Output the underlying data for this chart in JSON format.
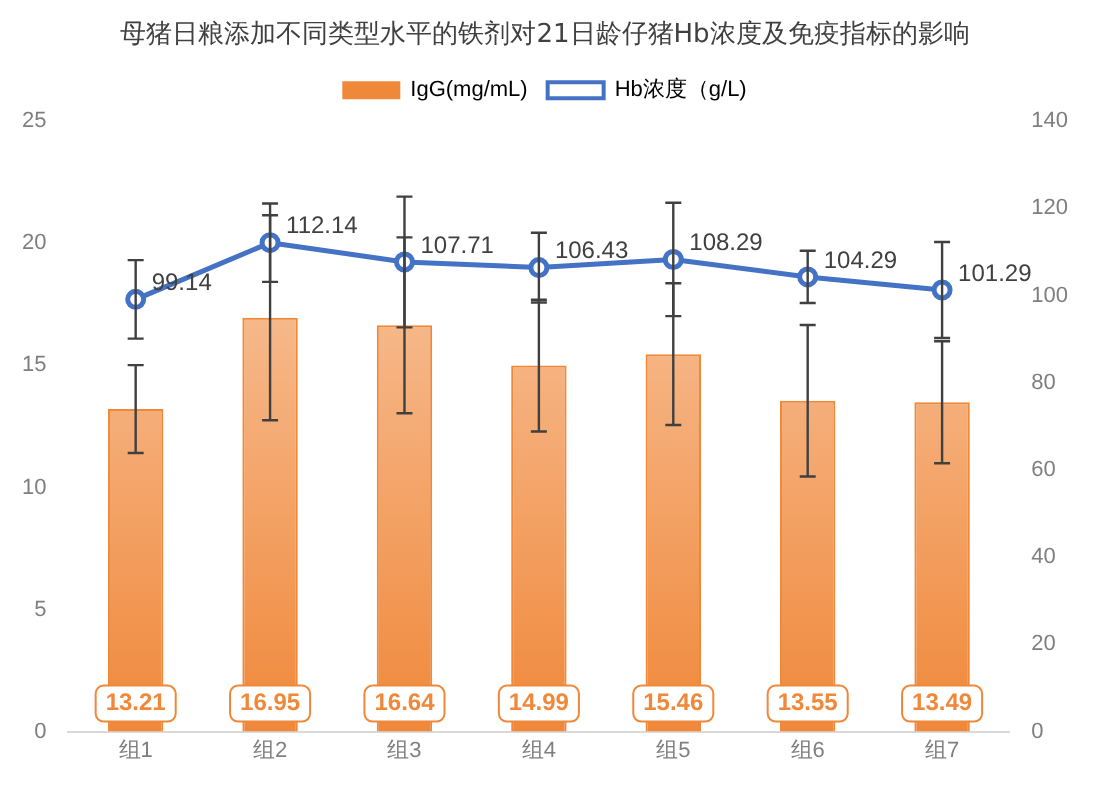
{
  "chart_data": {
    "type": "bar",
    "title": "母猪日粮添加不同类型水平的铁剂对21日龄仔猪Hb浓度及免疫指标的影响",
    "categories": [
      "组1",
      "组2",
      "组3",
      "组4",
      "组5",
      "组6",
      "组7"
    ],
    "series": [
      {
        "name": "IgG(mg/mL)",
        "color": "#f0883a",
        "values": [
          13.21,
          16.95,
          16.64,
          14.99,
          15.46,
          13.55,
          13.49
        ],
        "errors": [
          1.8,
          4.2,
          3.6,
          2.7,
          2.9,
          3.1,
          2.5
        ]
      },
      {
        "name": "Hb浓度（g/L)",
        "type": "line",
        "axis": "y2",
        "color": "#4472c4",
        "values": [
          99.14,
          112.14,
          107.71,
          106.43,
          108.29,
          104.29,
          101.29
        ],
        "errors": [
          9,
          9,
          15,
          8,
          13,
          6,
          11
        ]
      }
    ],
    "ylim": [
      0,
      25
    ],
    "yticks": [
      0,
      5,
      10,
      15,
      20,
      25
    ],
    "y2lim": [
      0,
      140
    ],
    "y2ticks": [
      0,
      20,
      40,
      60,
      80,
      100,
      120,
      140
    ],
    "data_labels": true,
    "legend": "top",
    "grid": false,
    "marker": "circle"
  }
}
